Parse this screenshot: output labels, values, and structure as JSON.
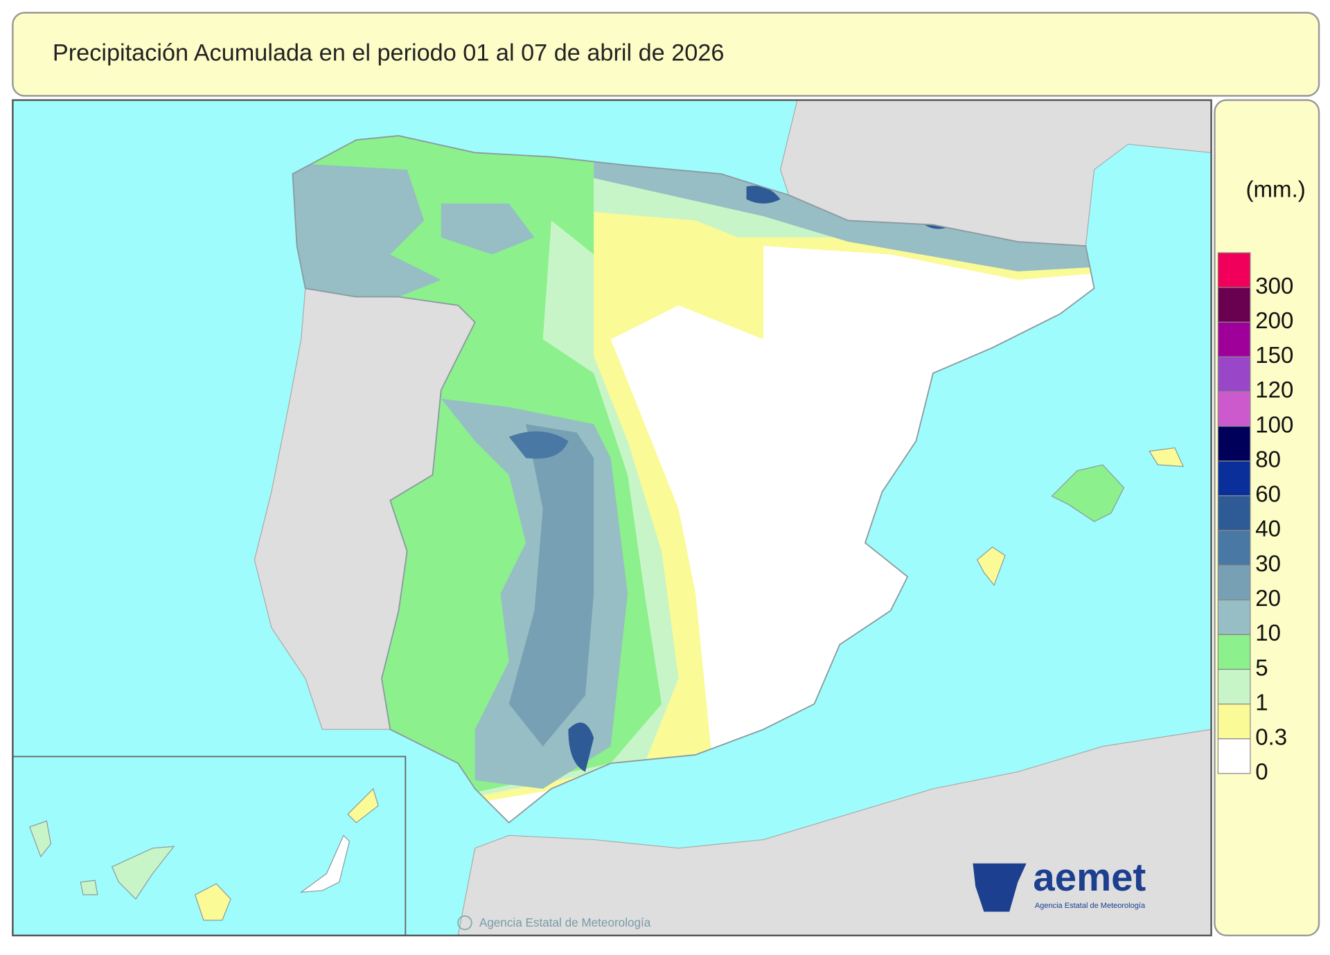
{
  "header": {
    "title": "Precipitación Acumulada en el periodo 01 al 07 de abril de 2026"
  },
  "legend": {
    "unit": "(mm.)",
    "levels": [
      {
        "value": 300,
        "color": "#f0005a"
      },
      {
        "value": 200,
        "color": "#6a0050"
      },
      {
        "value": 150,
        "color": "#a0009a"
      },
      {
        "value": 120,
        "color": "#9a46c8"
      },
      {
        "value": 100,
        "color": "#cc5acc"
      },
      {
        "value": 80,
        "color": "#00005a"
      },
      {
        "value": 60,
        "color": "#0a2e9a"
      },
      {
        "value": 40,
        "color": "#2e5a96"
      },
      {
        "value": 30,
        "color": "#4a78a4"
      },
      {
        "value": 20,
        "color": "#78a0b4"
      },
      {
        "value": 10,
        "color": "#96bec4"
      },
      {
        "value": 5,
        "color": "#8cf08c"
      },
      {
        "value": 1,
        "color": "#c8f5c8"
      },
      {
        "value": 0.3,
        "color": "#fafa96"
      },
      {
        "value": 0,
        "color": "#ffffff"
      }
    ]
  },
  "credit": "Agencia Estatal de Meteorología",
  "logo": {
    "name": "aemet",
    "tagline": "Agencia Estatal de Meteorología"
  }
}
